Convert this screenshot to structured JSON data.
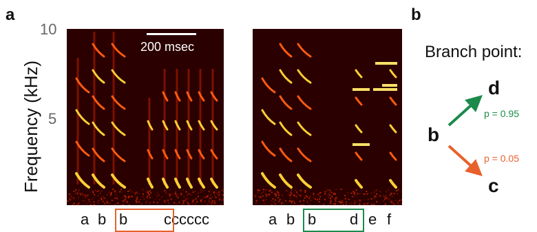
{
  "panel_a_label": "a",
  "panel_b_label": "b",
  "y_axis": {
    "label": "Frequency (kHz)",
    "ticks": [
      "10",
      "5"
    ]
  },
  "scale_bar_label": "200 msec",
  "spectrogram_1": {
    "syllables": [
      "a",
      "b",
      "b",
      "cccccc"
    ]
  },
  "spectrogram_2": {
    "syllables": [
      "a",
      "b",
      "b",
      "d",
      "e",
      "f"
    ]
  },
  "branch": {
    "title": "Branch point:",
    "source": "b",
    "target_up": "d",
    "target_down": "c",
    "p_up": "p = 0.95",
    "p_down": "p = 0.05"
  },
  "colors": {
    "box_1": "#e8612c",
    "box_2": "#1b8a4b",
    "arrow_up": "#1b8a4b",
    "arrow_down": "#e8612c",
    "spec_bg": "#2a0000"
  }
}
